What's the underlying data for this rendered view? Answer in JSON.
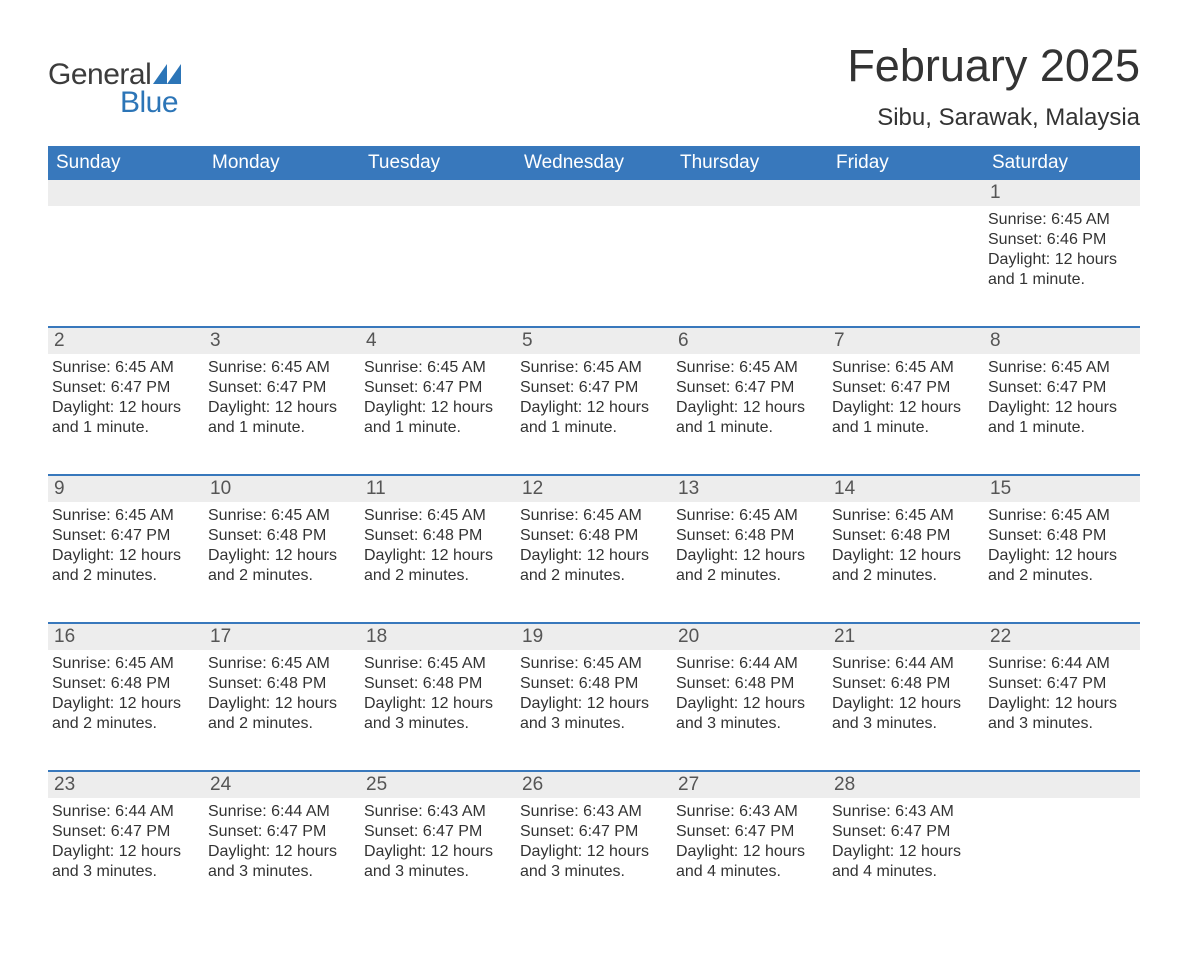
{
  "brand": {
    "word1": "General",
    "word2": "Blue",
    "word1_color": "#3c3c3c",
    "word2_color": "#2c75b7",
    "flag_color": "#2c75b7"
  },
  "title": "February 2025",
  "location": "Sibu, Sarawak, Malaysia",
  "colors": {
    "header_bg": "#3878bc",
    "header_text": "#ffffff",
    "daynum_bg": "#ededed",
    "text": "#333333",
    "separator": "#3878bc",
    "background": "#ffffff"
  },
  "typography": {
    "title_fontsize": 45,
    "location_fontsize": 24,
    "header_fontsize": 19,
    "daynum_fontsize": 19,
    "content_fontsize": 16
  },
  "day_labels": [
    "Sunday",
    "Monday",
    "Tuesday",
    "Wednesday",
    "Thursday",
    "Friday",
    "Saturday"
  ],
  "weeks": [
    [
      {
        "num": "",
        "sunrise": "",
        "sunset": "",
        "daylight": ""
      },
      {
        "num": "",
        "sunrise": "",
        "sunset": "",
        "daylight": ""
      },
      {
        "num": "",
        "sunrise": "",
        "sunset": "",
        "daylight": ""
      },
      {
        "num": "",
        "sunrise": "",
        "sunset": "",
        "daylight": ""
      },
      {
        "num": "",
        "sunrise": "",
        "sunset": "",
        "daylight": ""
      },
      {
        "num": "",
        "sunrise": "",
        "sunset": "",
        "daylight": ""
      },
      {
        "num": "1",
        "sunrise": "Sunrise: 6:45 AM",
        "sunset": "Sunset: 6:46 PM",
        "daylight": "Daylight: 12 hours and 1 minute."
      }
    ],
    [
      {
        "num": "2",
        "sunrise": "Sunrise: 6:45 AM",
        "sunset": "Sunset: 6:47 PM",
        "daylight": "Daylight: 12 hours and 1 minute."
      },
      {
        "num": "3",
        "sunrise": "Sunrise: 6:45 AM",
        "sunset": "Sunset: 6:47 PM",
        "daylight": "Daylight: 12 hours and 1 minute."
      },
      {
        "num": "4",
        "sunrise": "Sunrise: 6:45 AM",
        "sunset": "Sunset: 6:47 PM",
        "daylight": "Daylight: 12 hours and 1 minute."
      },
      {
        "num": "5",
        "sunrise": "Sunrise: 6:45 AM",
        "sunset": "Sunset: 6:47 PM",
        "daylight": "Daylight: 12 hours and 1 minute."
      },
      {
        "num": "6",
        "sunrise": "Sunrise: 6:45 AM",
        "sunset": "Sunset: 6:47 PM",
        "daylight": "Daylight: 12 hours and 1 minute."
      },
      {
        "num": "7",
        "sunrise": "Sunrise: 6:45 AM",
        "sunset": "Sunset: 6:47 PM",
        "daylight": "Daylight: 12 hours and 1 minute."
      },
      {
        "num": "8",
        "sunrise": "Sunrise: 6:45 AM",
        "sunset": "Sunset: 6:47 PM",
        "daylight": "Daylight: 12 hours and 1 minute."
      }
    ],
    [
      {
        "num": "9",
        "sunrise": "Sunrise: 6:45 AM",
        "sunset": "Sunset: 6:47 PM",
        "daylight": "Daylight: 12 hours and 2 minutes."
      },
      {
        "num": "10",
        "sunrise": "Sunrise: 6:45 AM",
        "sunset": "Sunset: 6:48 PM",
        "daylight": "Daylight: 12 hours and 2 minutes."
      },
      {
        "num": "11",
        "sunrise": "Sunrise: 6:45 AM",
        "sunset": "Sunset: 6:48 PM",
        "daylight": "Daylight: 12 hours and 2 minutes."
      },
      {
        "num": "12",
        "sunrise": "Sunrise: 6:45 AM",
        "sunset": "Sunset: 6:48 PM",
        "daylight": "Daylight: 12 hours and 2 minutes."
      },
      {
        "num": "13",
        "sunrise": "Sunrise: 6:45 AM",
        "sunset": "Sunset: 6:48 PM",
        "daylight": "Daylight: 12 hours and 2 minutes."
      },
      {
        "num": "14",
        "sunrise": "Sunrise: 6:45 AM",
        "sunset": "Sunset: 6:48 PM",
        "daylight": "Daylight: 12 hours and 2 minutes."
      },
      {
        "num": "15",
        "sunrise": "Sunrise: 6:45 AM",
        "sunset": "Sunset: 6:48 PM",
        "daylight": "Daylight: 12 hours and 2 minutes."
      }
    ],
    [
      {
        "num": "16",
        "sunrise": "Sunrise: 6:45 AM",
        "sunset": "Sunset: 6:48 PM",
        "daylight": "Daylight: 12 hours and 2 minutes."
      },
      {
        "num": "17",
        "sunrise": "Sunrise: 6:45 AM",
        "sunset": "Sunset: 6:48 PM",
        "daylight": "Daylight: 12 hours and 2 minutes."
      },
      {
        "num": "18",
        "sunrise": "Sunrise: 6:45 AM",
        "sunset": "Sunset: 6:48 PM",
        "daylight": "Daylight: 12 hours and 3 minutes."
      },
      {
        "num": "19",
        "sunrise": "Sunrise: 6:45 AM",
        "sunset": "Sunset: 6:48 PM",
        "daylight": "Daylight: 12 hours and 3 minutes."
      },
      {
        "num": "20",
        "sunrise": "Sunrise: 6:44 AM",
        "sunset": "Sunset: 6:48 PM",
        "daylight": "Daylight: 12 hours and 3 minutes."
      },
      {
        "num": "21",
        "sunrise": "Sunrise: 6:44 AM",
        "sunset": "Sunset: 6:48 PM",
        "daylight": "Daylight: 12 hours and 3 minutes."
      },
      {
        "num": "22",
        "sunrise": "Sunrise: 6:44 AM",
        "sunset": "Sunset: 6:47 PM",
        "daylight": "Daylight: 12 hours and 3 minutes."
      }
    ],
    [
      {
        "num": "23",
        "sunrise": "Sunrise: 6:44 AM",
        "sunset": "Sunset: 6:47 PM",
        "daylight": "Daylight: 12 hours and 3 minutes."
      },
      {
        "num": "24",
        "sunrise": "Sunrise: 6:44 AM",
        "sunset": "Sunset: 6:47 PM",
        "daylight": "Daylight: 12 hours and 3 minutes."
      },
      {
        "num": "25",
        "sunrise": "Sunrise: 6:43 AM",
        "sunset": "Sunset: 6:47 PM",
        "daylight": "Daylight: 12 hours and 3 minutes."
      },
      {
        "num": "26",
        "sunrise": "Sunrise: 6:43 AM",
        "sunset": "Sunset: 6:47 PM",
        "daylight": "Daylight: 12 hours and 3 minutes."
      },
      {
        "num": "27",
        "sunrise": "Sunrise: 6:43 AM",
        "sunset": "Sunset: 6:47 PM",
        "daylight": "Daylight: 12 hours and 4 minutes."
      },
      {
        "num": "28",
        "sunrise": "Sunrise: 6:43 AM",
        "sunset": "Sunset: 6:47 PM",
        "daylight": "Daylight: 12 hours and 4 minutes."
      },
      {
        "num": "",
        "sunrise": "",
        "sunset": "",
        "daylight": ""
      }
    ]
  ]
}
